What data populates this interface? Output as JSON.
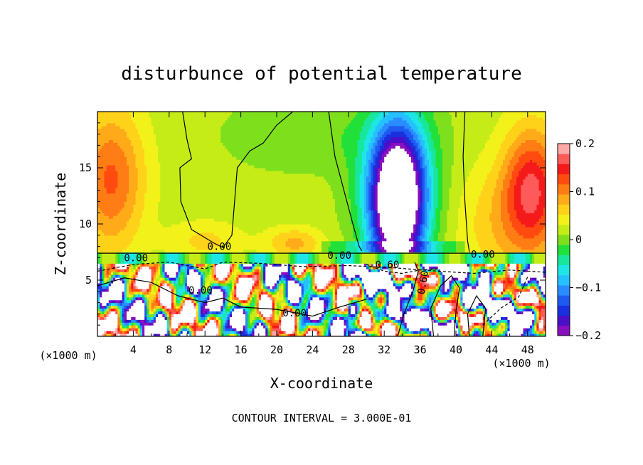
{
  "chart_data": {
    "type": "heatmap",
    "title": "disturbunce of potential temperature",
    "xlabel": "X-coordinate",
    "ylabel": "Z-coordinate",
    "x_unit": "(×1000 m)",
    "x_unit_right": "(×1000 m)",
    "footer": "CONTOUR INTERVAL = 3.000E-01",
    "xlim": [
      0,
      50
    ],
    "ylim": [
      0,
      20
    ],
    "x_ticks": [
      4,
      8,
      12,
      16,
      20,
      24,
      28,
      32,
      36,
      40,
      44,
      48
    ],
    "y_ticks": [
      5,
      10,
      15
    ],
    "colorbar": {
      "min": -0.2,
      "max": 0.2,
      "tick_values": [
        0.2,
        0.1,
        0,
        -0.1,
        -0.2
      ],
      "tick_labels": [
        "0.2",
        "0.1",
        "0",
        "−0.1",
        "−0.2"
      ],
      "colors": [
        "#8a0fbf",
        "#4b0fc8",
        "#1a2fdd",
        "#1e5af0",
        "#2a8cff",
        "#25c0ff",
        "#1fe6e6",
        "#18e69c",
        "#22e03a",
        "#7ee01c",
        "#c6ec18",
        "#f2f21a",
        "#ffd21a",
        "#ffaa18",
        "#ff7d14",
        "#ff4a10",
        "#f51a1a",
        "#ff5a5a",
        "#ffa8a8"
      ]
    },
    "contour_labels": [
      {
        "text": "0.00",
        "x": 13.6,
        "z": 8.0
      },
      {
        "text": "0.00",
        "x": 4.3,
        "z": 7.0
      },
      {
        "text": "0.00",
        "x": 27.0,
        "z": 7.2
      },
      {
        "text": "0.00",
        "x": 43.0,
        "z": 7.3
      },
      {
        "text": "0.00",
        "x": 11.5,
        "z": 4.1
      },
      {
        "text": "0.00",
        "x": 22.0,
        "z": 2.1
      },
      {
        "text": "0.60",
        "x": 36.3,
        "z": 4.8
      },
      {
        "text": "-0.60",
        "x": 32.0,
        "z": 6.4
      }
    ]
  }
}
